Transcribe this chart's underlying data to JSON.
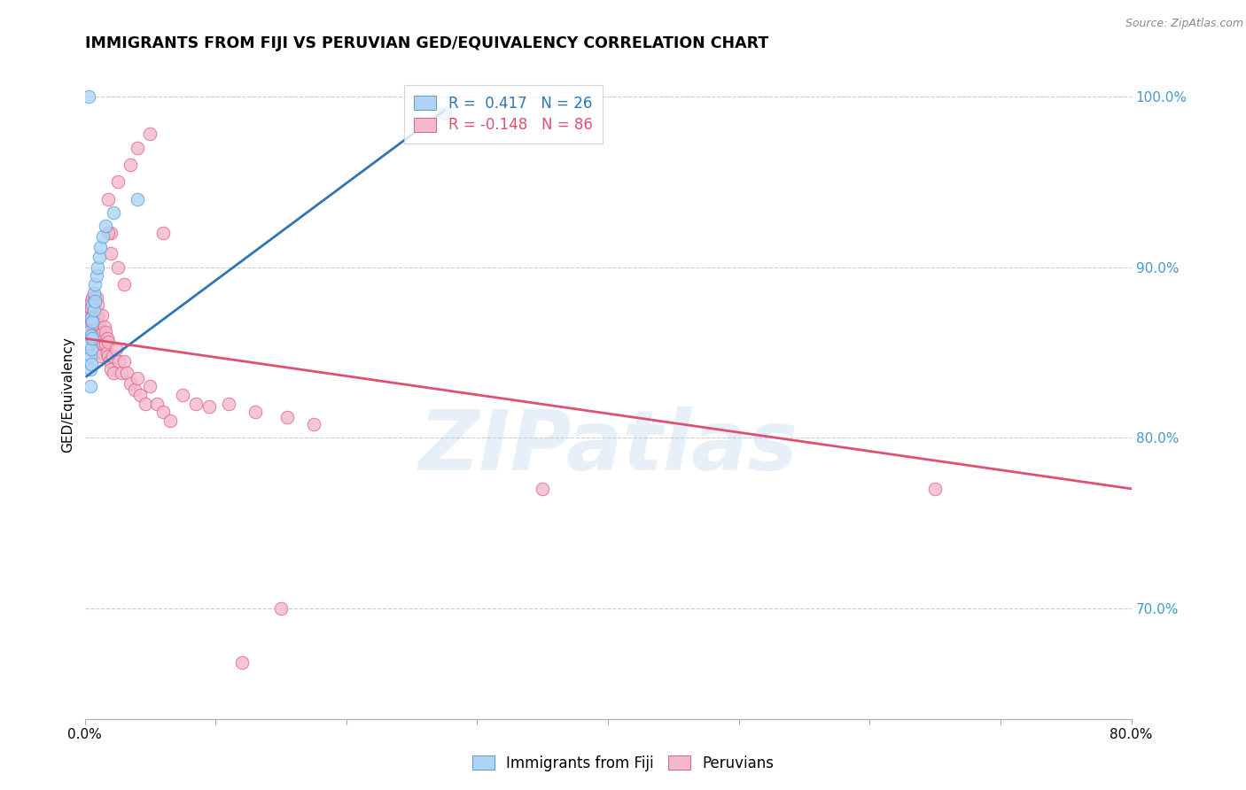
{
  "title": "IMMIGRANTS FROM FIJI VS PERUVIAN GED/EQUIVALENCY CORRELATION CHART",
  "source": "Source: ZipAtlas.com",
  "ylabel": "GED/Equivalency",
  "legend_labels": [
    "Immigrants from Fiji",
    "Peruvians"
  ],
  "fiji_R": 0.417,
  "fiji_N": 26,
  "peru_R": -0.148,
  "peru_N": 86,
  "xlim": [
    0.0,
    0.8
  ],
  "ylim": [
    0.635,
    1.015
  ],
  "y_ticks_right": [
    0.7,
    0.8,
    0.9,
    1.0
  ],
  "y_tick_labels_right": [
    "70.0%",
    "80.0%",
    "90.0%",
    "100.0%"
  ],
  "fiji_color": "#add4f5",
  "fiji_edge_color": "#5b9bd5",
  "fiji_line_color": "#2e75b6",
  "peru_color": "#f4b8ce",
  "peru_edge_color": "#e06080",
  "peru_line_color": "#e05070",
  "watermark": "ZIPatlas",
  "watermark_color": "#b0cfe8",
  "fiji_line_x": [
    0.0015,
    0.275
  ],
  "fiji_line_y": [
    0.836,
    0.992
  ],
  "peru_line_x": [
    0.0015,
    0.8
  ],
  "peru_line_y": [
    0.858,
    0.77
  ],
  "fiji_scatter_x": [
    0.002,
    0.003,
    0.004,
    0.004,
    0.004,
    0.005,
    0.005,
    0.005,
    0.005,
    0.006,
    0.006,
    0.006,
    0.007,
    0.007,
    0.008,
    0.008,
    0.009,
    0.01,
    0.011,
    0.012,
    0.014,
    0.016,
    0.022,
    0.04,
    0.275,
    0.003
  ],
  "fiji_scatter_y": [
    0.855,
    0.862,
    0.848,
    0.84,
    0.83,
    0.87,
    0.86,
    0.852,
    0.843,
    0.878,
    0.868,
    0.858,
    0.885,
    0.875,
    0.89,
    0.88,
    0.895,
    0.9,
    0.906,
    0.912,
    0.918,
    0.924,
    0.932,
    0.94,
    0.99,
    1.0
  ],
  "peru_scatter_x": [
    0.002,
    0.003,
    0.003,
    0.004,
    0.004,
    0.005,
    0.005,
    0.005,
    0.005,
    0.006,
    0.006,
    0.006,
    0.007,
    0.007,
    0.007,
    0.007,
    0.007,
    0.008,
    0.008,
    0.008,
    0.008,
    0.009,
    0.009,
    0.009,
    0.009,
    0.01,
    0.01,
    0.01,
    0.01,
    0.011,
    0.011,
    0.011,
    0.012,
    0.012,
    0.013,
    0.013,
    0.014,
    0.014,
    0.015,
    0.015,
    0.016,
    0.016,
    0.017,
    0.017,
    0.018,
    0.018,
    0.019,
    0.02,
    0.021,
    0.022,
    0.024,
    0.026,
    0.028,
    0.03,
    0.032,
    0.035,
    0.038,
    0.04,
    0.042,
    0.046,
    0.05,
    0.055,
    0.06,
    0.065,
    0.075,
    0.085,
    0.095,
    0.11,
    0.13,
    0.155,
    0.175,
    0.02,
    0.018,
    0.025,
    0.035,
    0.04,
    0.05,
    0.06,
    0.02,
    0.025,
    0.03,
    0.018,
    0.65,
    0.35,
    0.15,
    0.12
  ],
  "peru_scatter_y": [
    0.87,
    0.875,
    0.865,
    0.86,
    0.872,
    0.88,
    0.868,
    0.876,
    0.858,
    0.862,
    0.872,
    0.882,
    0.865,
    0.858,
    0.85,
    0.87,
    0.878,
    0.856,
    0.864,
    0.874,
    0.882,
    0.852,
    0.862,
    0.872,
    0.882,
    0.858,
    0.865,
    0.872,
    0.878,
    0.85,
    0.858,
    0.866,
    0.848,
    0.856,
    0.862,
    0.872,
    0.855,
    0.862,
    0.858,
    0.865,
    0.855,
    0.862,
    0.85,
    0.858,
    0.848,
    0.856,
    0.845,
    0.84,
    0.848,
    0.838,
    0.852,
    0.845,
    0.838,
    0.845,
    0.838,
    0.832,
    0.828,
    0.835,
    0.825,
    0.82,
    0.83,
    0.82,
    0.815,
    0.81,
    0.825,
    0.82,
    0.818,
    0.82,
    0.815,
    0.812,
    0.808,
    0.92,
    0.94,
    0.95,
    0.96,
    0.97,
    0.978,
    0.92,
    0.908,
    0.9,
    0.89,
    0.92,
    0.77,
    0.77,
    0.7,
    0.668
  ]
}
